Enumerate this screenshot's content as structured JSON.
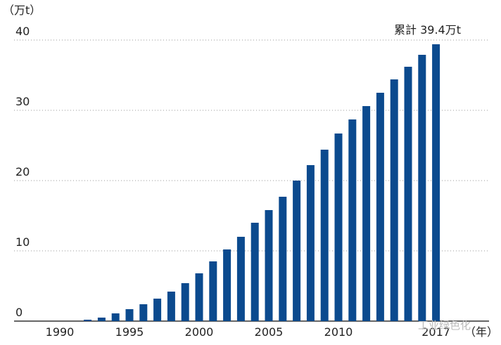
{
  "chart_data": {
    "type": "bar",
    "y_label": "（万t）",
    "x_label": "（年）",
    "annotation": "累計 39.4万t",
    "watermark": "工业绿色化",
    "categories": [
      "1990",
      null,
      null,
      null,
      null,
      "1995",
      null,
      null,
      null,
      null,
      "2000",
      null,
      null,
      null,
      null,
      "2005",
      null,
      null,
      null,
      null,
      "2010",
      null,
      null,
      null,
      null,
      null,
      null,
      "2017"
    ],
    "values": [
      0,
      0,
      0.2,
      0.5,
      1.1,
      1.7,
      2.4,
      3.2,
      4.2,
      5.4,
      6.8,
      8.5,
      10.2,
      12.0,
      14.0,
      15.8,
      17.7,
      20.0,
      22.2,
      24.4,
      26.7,
      28.7,
      30.6,
      32.5,
      34.4,
      36.2,
      37.9,
      39.4
    ],
    "color": "#0b4a8e",
    "ylim": [
      0,
      40
    ],
    "yticks": [
      0,
      10,
      20,
      30,
      40
    ],
    "grid": true
  }
}
